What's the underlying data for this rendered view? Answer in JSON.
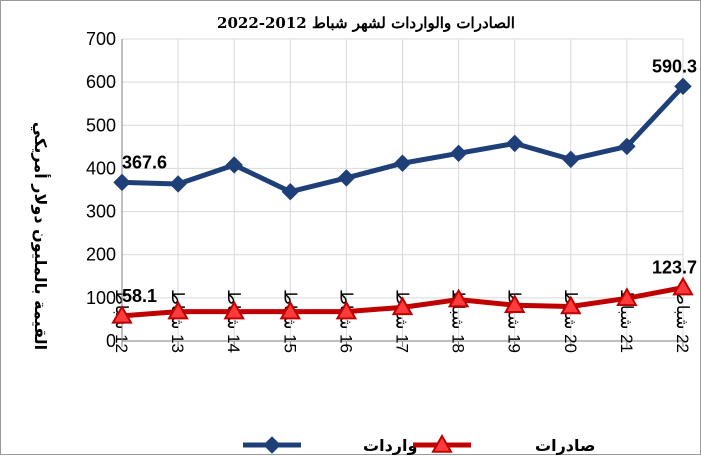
{
  "chart_data": {
    "type": "line",
    "title": "الصادرات والواردات لشهر شباط 2012-2022",
    "ylabel": "القيمة بالمليون دولار أمريكي",
    "xlabel": "",
    "ylim": [
      0,
      700
    ],
    "yticks": [
      0,
      100,
      200,
      300,
      400,
      500,
      600,
      700
    ],
    "grid": true,
    "legend_position": "bottom",
    "categories": [
      "12 شباط",
      "13 شباط",
      "14 شباط",
      "15 شباط",
      "16 شباط",
      "17 شباط",
      "18 شباط",
      "19 شباط",
      "20 شباط",
      "21 شباط",
      "22 شباط"
    ],
    "series": [
      {
        "name": "واردات",
        "color": "#1F3F78",
        "marker": "diamond",
        "values": [
          367.6,
          364,
          408,
          346,
          378,
          412,
          435,
          458,
          421,
          451,
          590.3
        ],
        "labeled_points": [
          {
            "index": 0,
            "label": "367.6"
          },
          {
            "index": 10,
            "label": "590.3"
          }
        ]
      },
      {
        "name": "صادرات",
        "color": "#C00000",
        "marker": "triangle",
        "values": [
          58.1,
          68,
          68,
          68,
          68,
          78,
          96,
          83,
          80,
          99,
          123.7
        ],
        "labeled_points": [
          {
            "index": 0,
            "label": "58.1"
          },
          {
            "index": 10,
            "label": "123.7"
          }
        ]
      }
    ]
  }
}
